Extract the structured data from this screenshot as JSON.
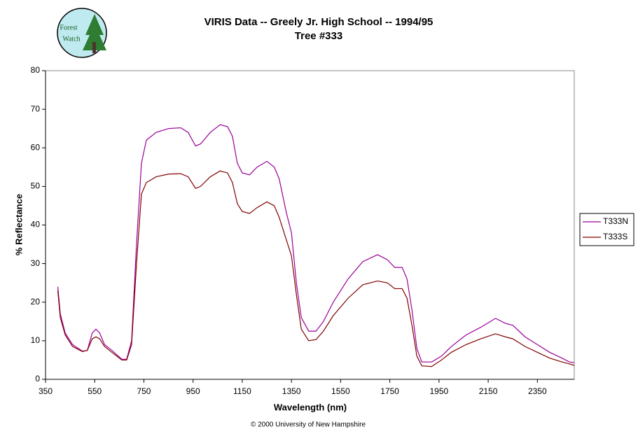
{
  "logo": {
    "lines": [
      "Forest",
      "Watch"
    ]
  },
  "footer": "© 2000 University of New Hampshire",
  "chart_data": {
    "type": "line",
    "title": "VIRIS Data -- Greely Jr. High School -- 1994/95",
    "subtitle": "Tree #333",
    "x_label": "Wavelength (nm)",
    "y_label": "% Reflectance",
    "x": [
      400,
      410,
      430,
      460,
      500,
      520,
      540,
      555,
      570,
      590,
      620,
      660,
      680,
      700,
      720,
      740,
      760,
      800,
      850,
      900,
      930,
      960,
      980,
      1020,
      1060,
      1090,
      1110,
      1130,
      1150,
      1180,
      1210,
      1250,
      1280,
      1300,
      1330,
      1350,
      1370,
      1390,
      1420,
      1450,
      1480,
      1520,
      1580,
      1640,
      1700,
      1740,
      1770,
      1800,
      1820,
      1840,
      1860,
      1880,
      1920,
      1960,
      2000,
      2060,
      2120,
      2180,
      2220,
      2250,
      2300,
      2350,
      2400,
      2450,
      2480,
      2500
    ],
    "series": [
      {
        "name": "T333N",
        "color": "#990099",
        "values": [
          24,
          17,
          12,
          9,
          7.3,
          7.5,
          12,
          13,
          12,
          9,
          7.5,
          5.2,
          5.2,
          10,
          35,
          56,
          62,
          64,
          65,
          65.2,
          64,
          60.5,
          61,
          64,
          66,
          65.5,
          63,
          56,
          53.5,
          53,
          55,
          56.5,
          55,
          52,
          43,
          38,
          25,
          16,
          12.5,
          12.5,
          15,
          20,
          26,
          30.5,
          32.3,
          31,
          29,
          29,
          26,
          18,
          8,
          4.5,
          4.5,
          6,
          8.5,
          11.5,
          13.5,
          15.8,
          14.5,
          14,
          11,
          9,
          7,
          5.5,
          4.5,
          4.3
        ]
      },
      {
        "name": "T333S",
        "color": "#800000",
        "values": [
          23,
          16,
          11.5,
          8.5,
          7.2,
          7.5,
          10.5,
          11,
          10.5,
          8.5,
          7,
          5,
          5,
          9,
          30,
          48,
          51,
          52.5,
          53.2,
          53.3,
          52.5,
          49.5,
          50,
          52.5,
          54,
          53.5,
          51,
          45.5,
          43.5,
          43,
          44.5,
          46,
          45,
          42,
          36,
          32,
          22,
          13,
          10,
          10.3,
          12.5,
          16.5,
          21,
          24.5,
          25.5,
          25,
          23.5,
          23.5,
          21,
          14,
          6,
          3.5,
          3.3,
          5,
          7,
          9,
          10.5,
          11.8,
          11,
          10.5,
          8.5,
          7,
          5.5,
          4.5,
          4,
          3.6
        ]
      }
    ],
    "xlim": [
      350,
      2500
    ],
    "xticks": [
      350,
      550,
      750,
      950,
      1150,
      1350,
      1550,
      1750,
      1950,
      2150,
      2350
    ],
    "ylim": [
      0,
      80
    ],
    "yticks": [
      0,
      10,
      20,
      30,
      40,
      50,
      60,
      70,
      80
    ],
    "grid": false,
    "legend": "right"
  }
}
